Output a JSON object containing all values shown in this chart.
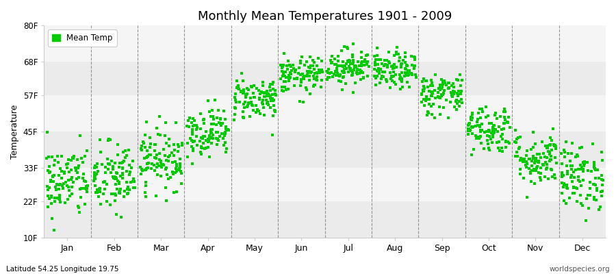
{
  "title": "Monthly Mean Temperatures 1901 - 2009",
  "ylabel": "Temperature",
  "legend_label": "Mean Temp",
  "ytick_labels": [
    "10F",
    "22F",
    "33F",
    "45F",
    "57F",
    "68F",
    "80F"
  ],
  "ytick_values": [
    10,
    22,
    33,
    45,
    57,
    68,
    80
  ],
  "ylim": [
    10,
    80
  ],
  "xlim": [
    0,
    12
  ],
  "month_labels": [
    "Jan",
    "Feb",
    "Mar",
    "Apr",
    "May",
    "Jun",
    "Jul",
    "Aug",
    "Sep",
    "Oct",
    "Nov",
    "Dec"
  ],
  "month_positions": [
    0.5,
    1.5,
    2.5,
    3.5,
    4.5,
    5.5,
    6.5,
    7.5,
    8.5,
    9.5,
    10.5,
    11.5
  ],
  "vline_positions": [
    1,
    2,
    3,
    4,
    5,
    6,
    7,
    8,
    9,
    10,
    11
  ],
  "dot_color": "#00CC00",
  "bg_color": "#ffffff",
  "plot_bg_color": "#ffffff",
  "band_color_light": "#ebebeb",
  "band_color_white": "#f5f5f5",
  "subtitle_left": "Latitude 54.25 Longitude 19.75",
  "subtitle_right": "worldspecies.org",
  "n_years": 109,
  "monthly_mean_F": [
    28.5,
    29.5,
    36.0,
    45.0,
    56.0,
    63.5,
    66.5,
    65.0,
    57.5,
    46.0,
    36.0,
    30.0
  ],
  "monthly_std_F": [
    6.0,
    6.0,
    5.0,
    4.0,
    3.5,
    3.0,
    3.0,
    3.0,
    3.5,
    4.0,
    4.5,
    5.5
  ],
  "marker_size": 9,
  "marker": "s"
}
